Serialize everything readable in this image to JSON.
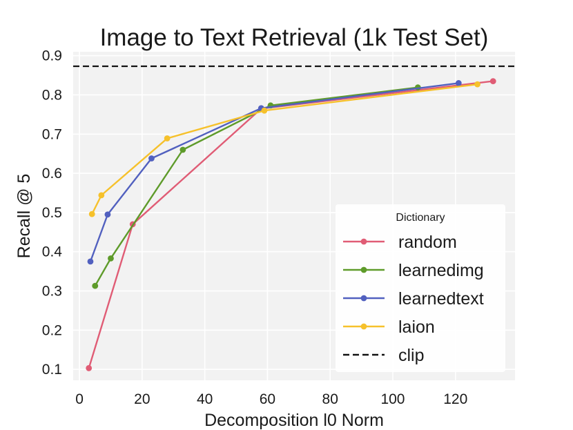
{
  "chart_data": {
    "type": "line",
    "title": "Image to Text Retrieval (1k Test Set)",
    "xlabel": "Decomposition l0 Norm",
    "ylabel": "Recall @ 5",
    "xlim": [
      -2,
      139
    ],
    "ylim": [
      0.072,
      0.91
    ],
    "xticks": [
      0,
      20,
      40,
      60,
      80,
      100,
      120
    ],
    "yticks": [
      0.1,
      0.2,
      0.3,
      0.4,
      0.5,
      0.6,
      0.7,
      0.8,
      0.9
    ],
    "xtick_labels": [
      "0",
      "20",
      "40",
      "60",
      "80",
      "100",
      "120"
    ],
    "ytick_labels": [
      "0.1",
      "0.2",
      "0.3",
      "0.4",
      "0.5",
      "0.6",
      "0.7",
      "0.8",
      "0.9"
    ],
    "grid": true,
    "legend": {
      "title": "Dictionary",
      "position": "bottom-right"
    },
    "series": [
      {
        "name": "random",
        "color": "#e05c75",
        "x": [
          3,
          17,
          58,
          132
        ],
        "y": [
          0.103,
          0.47,
          0.765,
          0.835
        ]
      },
      {
        "name": "learnedimg",
        "color": "#5e9b2a",
        "x": [
          5,
          10,
          33,
          61,
          108
        ],
        "y": [
          0.313,
          0.383,
          0.66,
          0.773,
          0.819
        ]
      },
      {
        "name": "learnedtext",
        "color": "#5160bf",
        "x": [
          3.5,
          9,
          23,
          58,
          121
        ],
        "y": [
          0.375,
          0.495,
          0.638,
          0.766,
          0.83
        ]
      },
      {
        "name": "laion",
        "color": "#f6c12b",
        "x": [
          4,
          7,
          28,
          59,
          127
        ],
        "y": [
          0.496,
          0.544,
          0.689,
          0.76,
          0.827
        ]
      }
    ],
    "reference_lines": [
      {
        "name": "clip",
        "y": 0.873,
        "color": "#111111",
        "style": "dashed"
      }
    ]
  }
}
